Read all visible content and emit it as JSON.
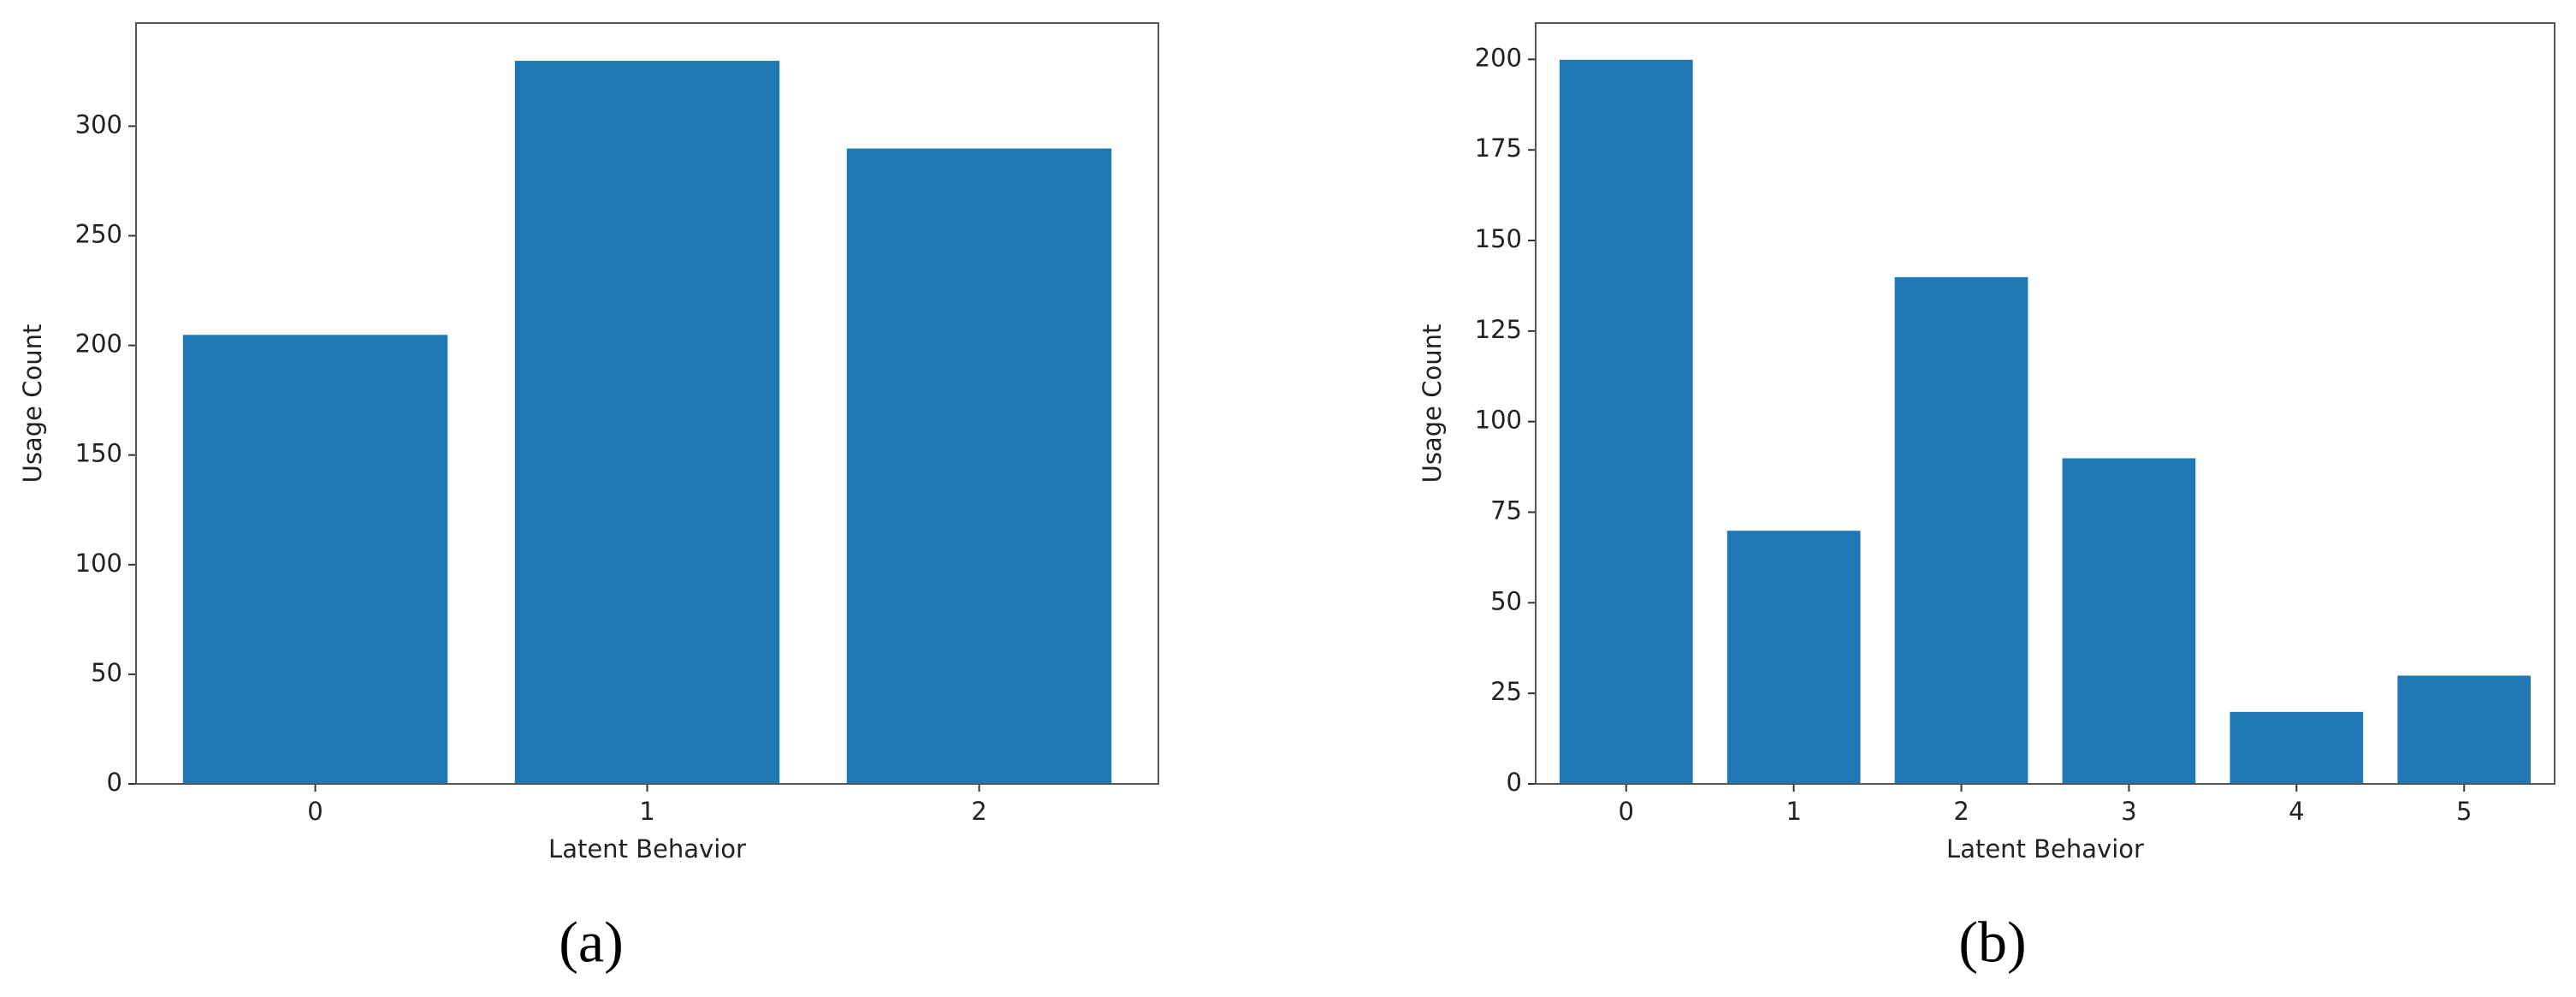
{
  "chart_data": [
    {
      "type": "bar",
      "caption": "(a)",
      "x_label": "Latent Behavior",
      "y_label": "Usage Count",
      "categories": [
        "0",
        "1",
        "2"
      ],
      "values": [
        205,
        330,
        290
      ],
      "color": "#1f77b4",
      "ylim": [
        0,
        347
      ],
      "yticks": [
        0,
        50,
        100,
        150,
        200,
        250,
        300
      ]
    },
    {
      "type": "bar",
      "caption": "(b)",
      "x_label": "Latent Behavior",
      "y_label": "Usage Count",
      "categories": [
        "0",
        "1",
        "2",
        "3",
        "4",
        "5"
      ],
      "values": [
        200,
        70,
        140,
        90,
        20,
        30
      ],
      "color": "#1f77b4",
      "ylim": [
        0,
        210
      ],
      "yticks": [
        0,
        25,
        50,
        75,
        100,
        125,
        150,
        175,
        200
      ]
    }
  ]
}
